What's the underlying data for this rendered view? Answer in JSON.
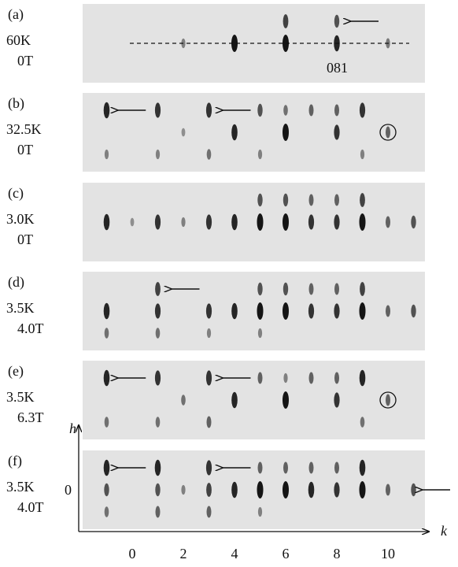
{
  "panels": [
    {
      "label": "(a)",
      "temperature": "60K",
      "field": "0T"
    },
    {
      "label": "(b)",
      "temperature": "32.5K",
      "field": "0T"
    },
    {
      "label": "(c)",
      "temperature": "3.0K",
      "field": "0T"
    },
    {
      "label": "(d)",
      "temperature": "3.5K",
      "field": "4.0T"
    },
    {
      "label": "(e)",
      "temperature": "3.5K",
      "field": "6.3T"
    },
    {
      "label": "(f)",
      "temperature": "3.5K",
      "field": "4.0T"
    }
  ],
  "annotation": "081",
  "axes": {
    "x_label": "k",
    "y_label": "h",
    "y_tick": "0",
    "x_ticks": [
      "0",
      "2",
      "4",
      "6",
      "8",
      "10"
    ]
  }
}
